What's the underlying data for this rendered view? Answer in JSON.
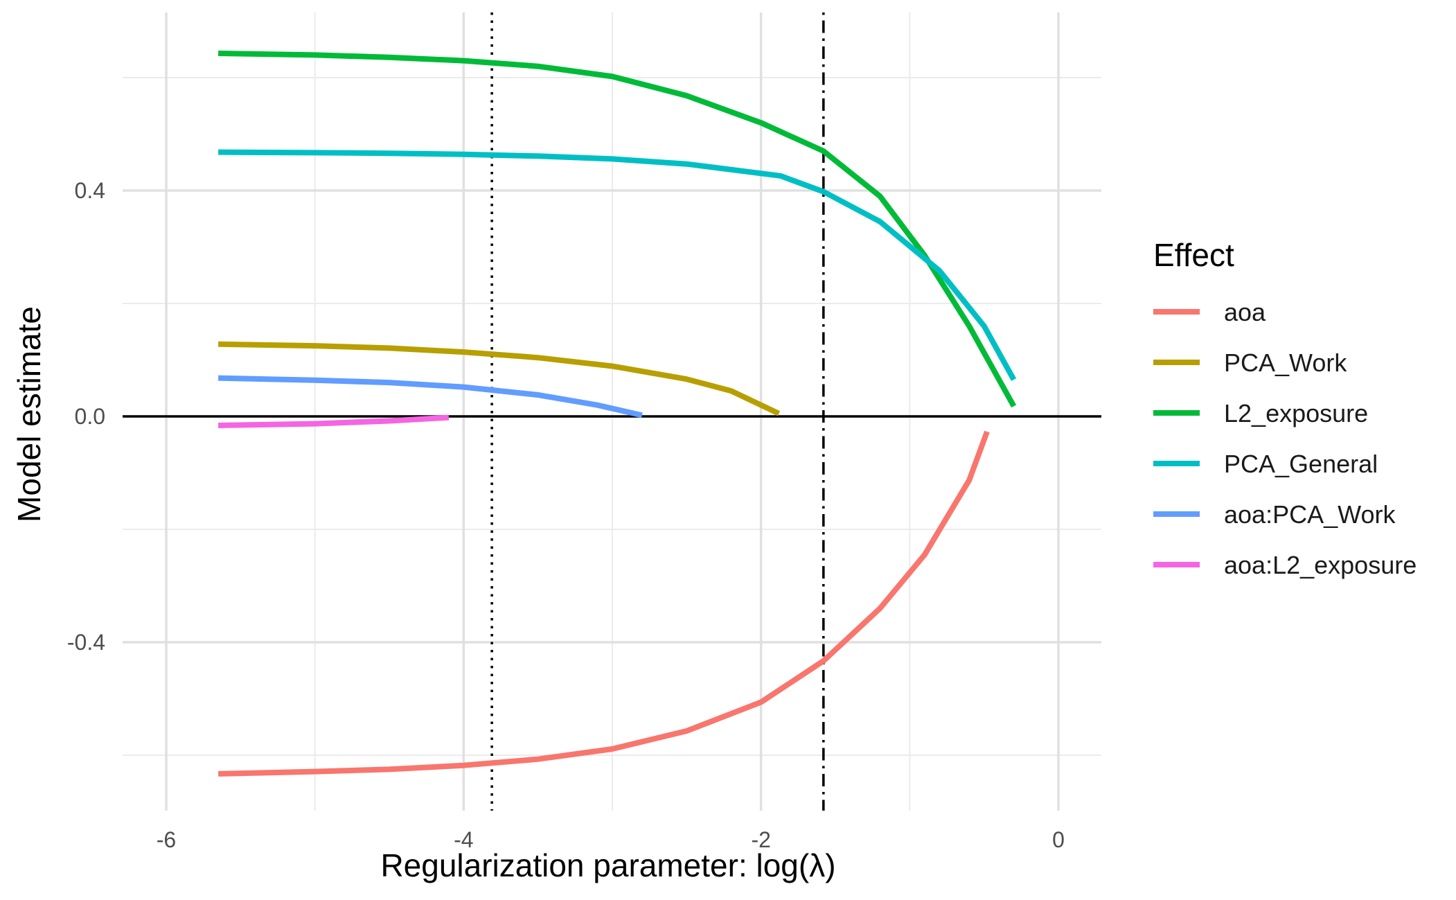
{
  "chart_data": {
    "type": "line",
    "xlabel": "Regularization parameter: log(λ)",
    "ylabel": "Model estimate",
    "xlim": [
      -6.3,
      0.3
    ],
    "ylim": [
      -0.695,
      0.705
    ],
    "x_ticks": [
      -6,
      -4,
      -2,
      0
    ],
    "x_tick_labels": [
      "-6",
      "-4",
      "-2",
      "0"
    ],
    "x_minor_ticks": [
      -5,
      -3,
      -1
    ],
    "y_ticks": [
      -0.4,
      0.0,
      0.4
    ],
    "y_tick_labels": [
      "-0.4",
      "0.0",
      "0.4"
    ],
    "y_minor_ticks": [
      -0.6,
      -0.2,
      0.2,
      0.6
    ],
    "grid": true,
    "reference_lines": [
      {
        "axis": "y",
        "value": 0.0,
        "style": "solid",
        "color": "#000000"
      },
      {
        "axis": "x",
        "value": -3.81,
        "style": "dotted",
        "color": "#000000"
      },
      {
        "axis": "x",
        "value": -1.58,
        "style": "dotdash",
        "color": "#000000"
      }
    ],
    "legend": {
      "title": "Effect",
      "position": "right"
    },
    "series": [
      {
        "name": "aoa",
        "color": "#F8766D",
        "x": [
          -5.65,
          -5.0,
          -4.5,
          -4.0,
          -3.5,
          -3.0,
          -2.5,
          -2.0,
          -1.58,
          -1.2,
          -0.9,
          -0.6,
          -0.48
        ],
        "y": [
          -0.633,
          -0.629,
          -0.625,
          -0.618,
          -0.607,
          -0.589,
          -0.557,
          -0.506,
          -0.433,
          -0.34,
          -0.245,
          -0.113,
          -0.027
        ]
      },
      {
        "name": "PCA_Work",
        "color": "#B79F00",
        "x": [
          -5.65,
          -5.0,
          -4.5,
          -4.0,
          -3.5,
          -3.0,
          -2.5,
          -2.2,
          -1.88
        ],
        "y": [
          0.128,
          0.125,
          0.121,
          0.114,
          0.104,
          0.089,
          0.066,
          0.045,
          0.005
        ]
      },
      {
        "name": "L2_exposure",
        "color": "#00BA38",
        "x": [
          -5.65,
          -5.0,
          -4.5,
          -4.0,
          -3.5,
          -3.0,
          -2.5,
          -2.0,
          -1.58,
          -1.2,
          -0.9,
          -0.6,
          -0.3
        ],
        "y": [
          0.643,
          0.64,
          0.636,
          0.63,
          0.62,
          0.602,
          0.568,
          0.52,
          0.47,
          0.39,
          0.285,
          0.16,
          0.018
        ]
      },
      {
        "name": "PCA_General",
        "color": "#00BFC4",
        "x": [
          -5.65,
          -5.0,
          -4.5,
          -4.0,
          -3.5,
          -3.0,
          -2.5,
          -1.87,
          -1.58,
          -1.2,
          -0.8,
          -0.5,
          -0.3
        ],
        "y": [
          0.468,
          0.467,
          0.466,
          0.464,
          0.461,
          0.456,
          0.447,
          0.426,
          0.398,
          0.345,
          0.258,
          0.16,
          0.065
        ]
      },
      {
        "name": "aoa:PCA_Work",
        "color": "#619CFF",
        "x": [
          -5.65,
          -5.0,
          -4.5,
          -4.0,
          -3.5,
          -3.1,
          -2.8
        ],
        "y": [
          0.068,
          0.064,
          0.06,
          0.052,
          0.038,
          0.02,
          0.002
        ]
      },
      {
        "name": "aoa:L2_exposure",
        "color": "#F564E3",
        "x": [
          -5.65,
          -5.0,
          -4.5,
          -4.1
        ],
        "y": [
          -0.016,
          -0.013,
          -0.008,
          -0.002
        ]
      }
    ]
  }
}
